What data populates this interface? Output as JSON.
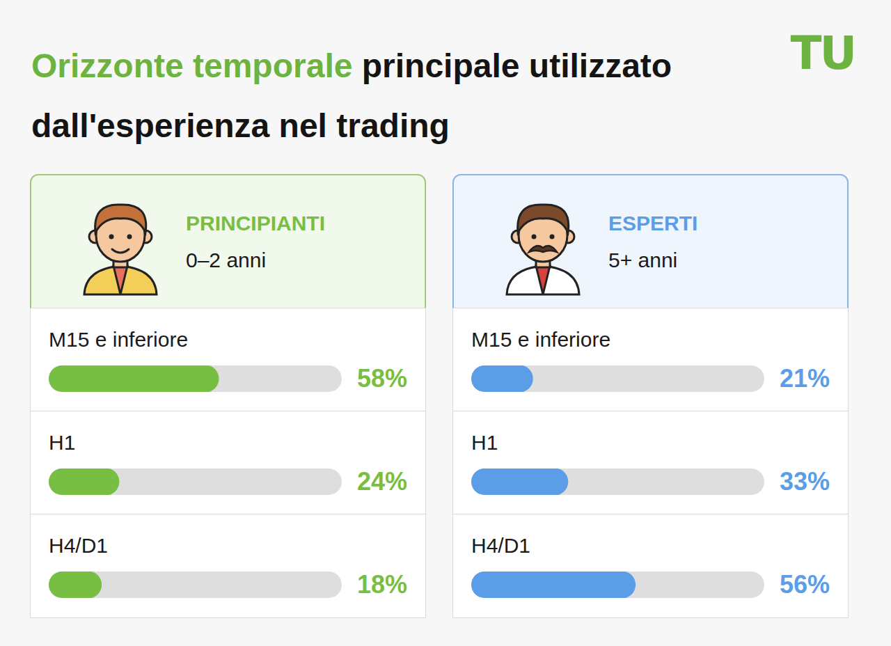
{
  "header": {
    "title_highlight": "Orizzonte temporale",
    "title": "principale utilizzato dall'esperienza nel trading",
    "logo": "TU"
  },
  "chart_data": [
    {
      "type": "bar",
      "orientation": "horizontal",
      "title": "PRINCIPIANTI",
      "subtitle": "0–2 anni",
      "categories": [
        "M15 e inferiore",
        "H1",
        "H4/D1"
      ],
      "values": [
        58,
        24,
        18
      ],
      "value_labels": [
        "58%",
        "24%",
        "18%"
      ],
      "color": "#78be43",
      "xlim": [
        0,
        100
      ],
      "tick_labels": false,
      "data_labels": true,
      "grid": false
    },
    {
      "type": "bar",
      "orientation": "horizontal",
      "title": "ESPERTI",
      "subtitle": "5+ anni",
      "categories": [
        "M15 e inferiore",
        "H1",
        "H4/D1"
      ],
      "values": [
        21,
        33,
        56
      ],
      "value_labels": [
        "21%",
        "33%",
        "56%"
      ],
      "color": "#5b9de6",
      "xlim": [
        0,
        100
      ],
      "tick_labels": false,
      "data_labels": true,
      "grid": false
    }
  ]
}
